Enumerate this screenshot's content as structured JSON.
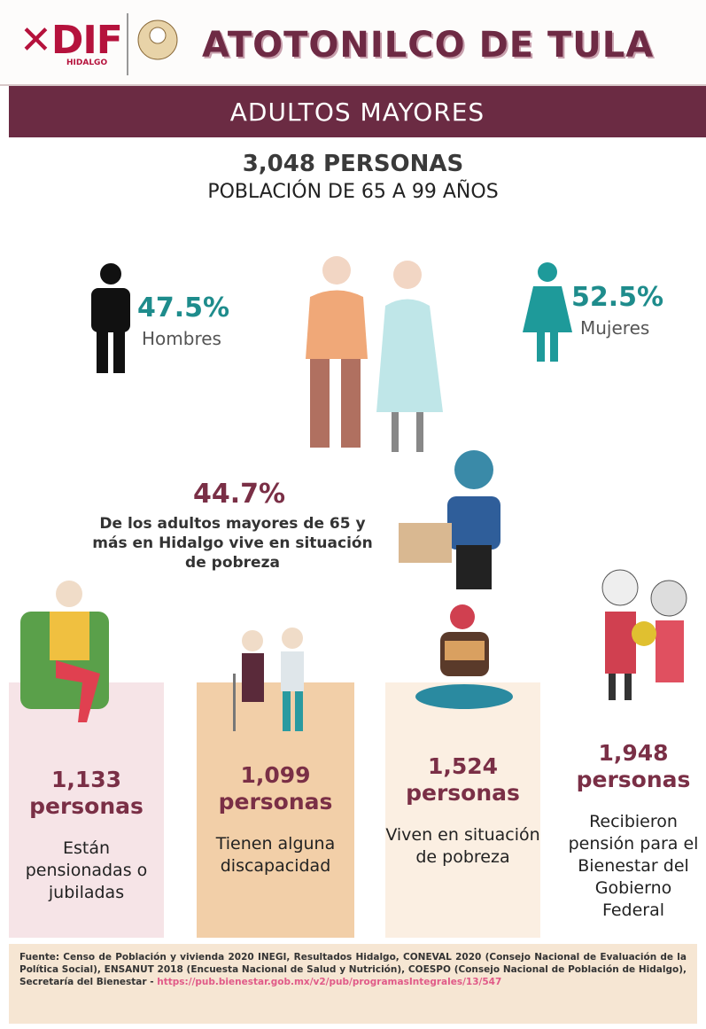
{
  "header": {
    "logo": "DIF",
    "logo_sub": "HIDALGO",
    "title": "ATOTONILCO DE TULA"
  },
  "banner": "ADULTOS MAYORES",
  "population": {
    "total": "3,048 PERSONAS",
    "description": "POBLACIÓN DE 65 A 99 AÑOS"
  },
  "gender": [
    {
      "percent": "47.5%",
      "label": "Hombres"
    },
    {
      "percent": "52.5%",
      "label": "Mujeres"
    }
  ],
  "poverty": {
    "percent": "44.7%",
    "text": "De los adultos mayores de 65 y más en Hidalgo vive en situación de pobreza"
  },
  "cards": [
    {
      "number": "1,133",
      "unit": "personas",
      "text": "Están pensionadas o jubiladas"
    },
    {
      "number": "1,099",
      "unit": "personas",
      "text": "Tienen alguna discapacidad"
    },
    {
      "number": "1,524",
      "unit": "personas",
      "text": "Viven en situación de pobreza"
    },
    {
      "number": "1,948",
      "unit": "personas",
      "text": "Recibieron pensión para el Bienestar del Gobierno Federal"
    }
  ],
  "footer": {
    "source": "Fuente: Censo de Población y vivienda 2020 INEGI, Resultados Hidalgo, CONEVAL 2020 (Consejo Nacional de Evaluación de la Política Social), ENSANUT 2018 (Encuesta Nacional de Salud y Nutrición), COESPO (Consejo Nacional de Población de Hidalgo), Secretaría del Bienestar -",
    "link": "https://pub.bienestar.gob.mx/v2/pub/programasIntegrales/13/547"
  }
}
